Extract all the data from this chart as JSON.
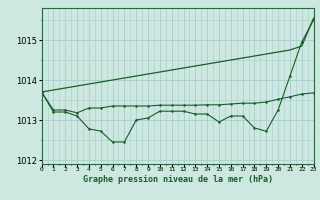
{
  "x": [
    0,
    1,
    2,
    3,
    4,
    5,
    6,
    7,
    8,
    9,
    10,
    11,
    12,
    13,
    14,
    15,
    16,
    17,
    18,
    19,
    20,
    21,
    22,
    23
  ],
  "smooth_line": [
    1013.7,
    1013.75,
    1013.8,
    1013.85,
    1013.9,
    1013.95,
    1014.0,
    1014.05,
    1014.1,
    1014.15,
    1014.2,
    1014.25,
    1014.3,
    1014.35,
    1014.4,
    1014.45,
    1014.5,
    1014.55,
    1014.6,
    1014.65,
    1014.7,
    1014.75,
    1014.85,
    1015.55
  ],
  "upper_markers": [
    1013.7,
    1013.25,
    1013.25,
    1013.18,
    1013.3,
    1013.3,
    1013.35,
    1013.35,
    1013.35,
    1013.35,
    1013.37,
    1013.37,
    1013.37,
    1013.37,
    1013.38,
    1013.38,
    1013.4,
    1013.42,
    1013.42,
    1013.45,
    1013.52,
    1013.58,
    1013.65,
    1013.68
  ],
  "lower_markers": [
    1013.7,
    1013.2,
    1013.2,
    1013.1,
    1012.78,
    1012.72,
    1012.45,
    1012.45,
    1013.0,
    1013.05,
    1013.22,
    1013.22,
    1013.22,
    1013.15,
    1013.15,
    1012.95,
    1013.1,
    1013.1,
    1012.8,
    1012.72,
    1013.25,
    1014.1,
    1014.95,
    1015.5
  ],
  "bg_color": "#cce8e0",
  "grid_color": "#aacccc",
  "line_color": "#1a5c2a",
  "xlabel": "Graphe pression niveau de la mer (hPa)",
  "ylim": [
    1011.9,
    1015.8
  ],
  "xlim": [
    0,
    23
  ]
}
